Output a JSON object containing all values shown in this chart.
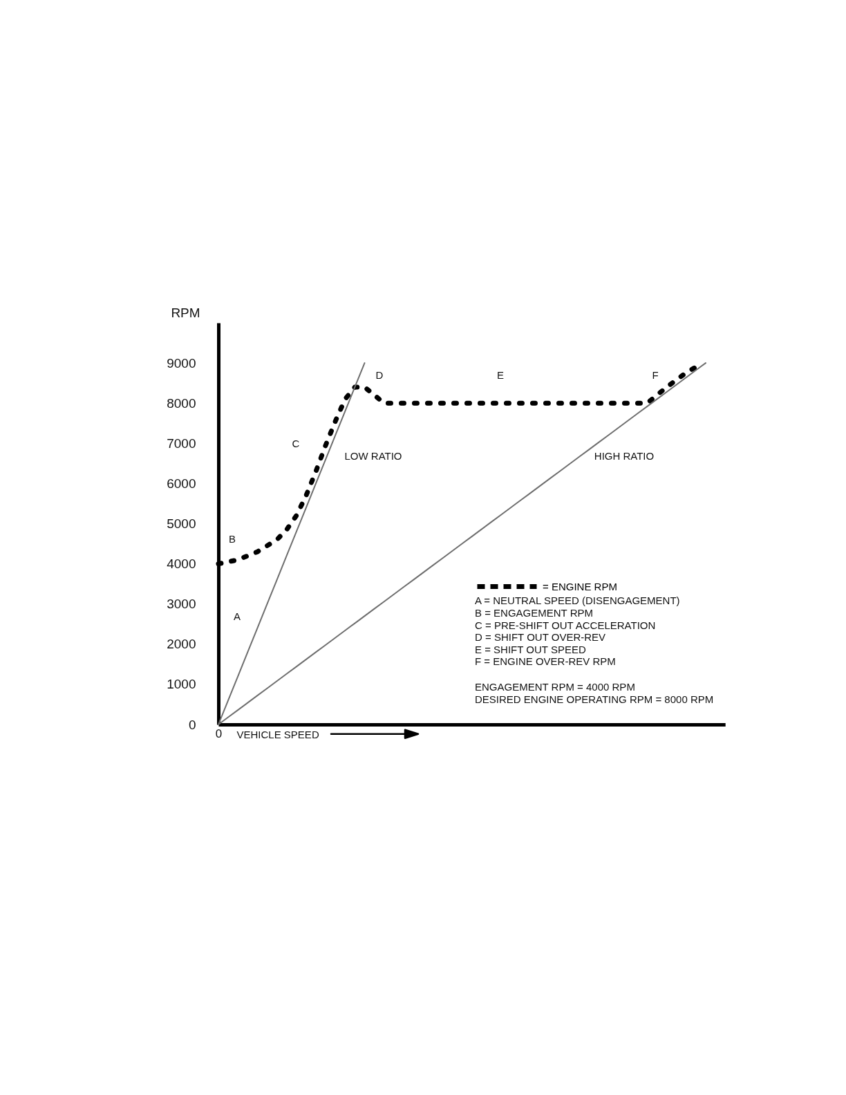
{
  "chart_data": {
    "type": "line",
    "xlabel": "VEHICLE SPEED",
    "ylabel": "RPM",
    "categories": [
      "0",
      null,
      null,
      null,
      null,
      null,
      null,
      null,
      null,
      null,
      null,
      null,
      null,
      null,
      null,
      null,
      null,
      null,
      null,
      null,
      null,
      null,
      null,
      null,
      null,
      null,
      null,
      null,
      null,
      null,
      null,
      null,
      null,
      null,
      null,
      null,
      null,
      null,
      null,
      null,
      null,
      null,
      null,
      null,
      null,
      null,
      null,
      null,
      null,
      null,
      null,
      null,
      null
    ],
    "series": [
      {
        "name": "= ENGINE RPM",
        "color": "#000000",
        "line_style": "dotted",
        "values": [
          4000,
          4050,
          4100,
          4200,
          4300,
          4450,
          4600,
          4850,
          5200,
          5700,
          6300,
          6950,
          7550,
          8100,
          8400,
          8400,
          8200,
          8000,
          8000,
          8000,
          8000,
          8000,
          8000,
          8000,
          8000,
          8000,
          8000,
          8000,
          8000,
          8000,
          8000,
          8000,
          8000,
          8000,
          8000,
          8000,
          8000,
          8000,
          8000,
          8000,
          8000,
          8000,
          8000,
          8000,
          8000,
          8200,
          8400,
          8580,
          8760,
          8900,
          null,
          null,
          null
        ]
      },
      {
        "color": "#6e6e6e",
        "values": [
          0,
          600,
          1200,
          1800,
          2400,
          3000,
          3600,
          4200,
          4800,
          5400,
          6000,
          6600,
          7200,
          7800,
          8400,
          9000,
          null,
          null,
          null,
          null,
          null,
          null,
          null,
          null,
          null,
          null,
          null,
          null,
          null,
          null,
          null,
          null,
          null,
          null,
          null,
          null,
          null,
          null,
          null,
          null,
          null,
          null,
          null,
          null,
          null,
          null,
          null,
          null,
          null,
          null,
          null,
          null,
          null
        ]
      },
      {
        "color": "#6e6e6e",
        "values": [
          0,
          180,
          360,
          540,
          720,
          900,
          1080,
          1260,
          1440,
          1620,
          1800,
          1980,
          2160,
          2340,
          2520,
          2700,
          2880,
          3060,
          3240,
          3420,
          3600,
          3780,
          3960,
          4140,
          4320,
          4500,
          4680,
          4860,
          5040,
          5220,
          5400,
          5580,
          5760,
          5940,
          6120,
          6300,
          6480,
          6660,
          6840,
          7020,
          7200,
          7380,
          7560,
          7740,
          7920,
          8100,
          8280,
          8460,
          8640,
          8820,
          9000,
          null,
          null
        ]
      }
    ],
    "ylim": [
      0,
      10000
    ],
    "yticks": [
      0,
      1000,
      2000,
      3000,
      4000,
      5000,
      6000,
      7000,
      8000,
      9000
    ],
    "legend": "bottom right",
    "annotations": [
      "A",
      "B",
      "C",
      "D",
      "E",
      "F",
      "LOW RATIO",
      "HIGH RATIO",
      "A = NEUTRAL SPEED (DISENGAGEMENT)",
      "B = ENGAGEMENT RPM",
      "C = PRE-SHIFT OUT ACCELERATION",
      "D = SHIFT OUT OVER-REV",
      "E = SHIFT OUT SPEED",
      "F = ENGINE OVER-REV RPM",
      "ENGAGEMENT RPM = 4000 RPM",
      "DESIRED ENGINE OPERATING RPM = 8000 RPM"
    ]
  }
}
